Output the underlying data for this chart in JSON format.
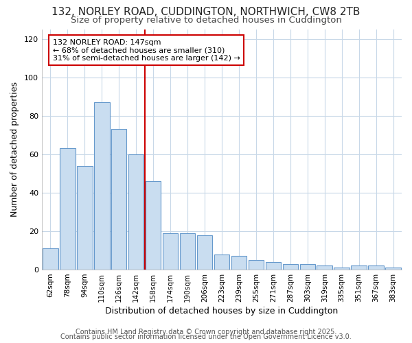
{
  "title1": "132, NORLEY ROAD, CUDDINGTON, NORTHWICH, CW8 2TB",
  "title2": "Size of property relative to detached houses in Cuddington",
  "xlabel": "Distribution of detached houses by size in Cuddington",
  "ylabel": "Number of detached properties",
  "categories": [
    "62sqm",
    "78sqm",
    "94sqm",
    "110sqm",
    "126sqm",
    "142sqm",
    "158sqm",
    "174sqm",
    "190sqm",
    "206sqm",
    "223sqm",
    "239sqm",
    "255sqm",
    "271sqm",
    "287sqm",
    "303sqm",
    "319sqm",
    "335sqm",
    "351sqm",
    "367sqm",
    "383sqm"
  ],
  "values": [
    11,
    63,
    54,
    87,
    73,
    60,
    46,
    19,
    19,
    18,
    8,
    7,
    5,
    4,
    3,
    3,
    2,
    1,
    2,
    2,
    1
  ],
  "bar_color": "#c9ddf0",
  "bar_edge_color": "#6699cc",
  "vline_x": 5.5,
  "vline_color": "#cc0000",
  "annotation_text": "132 NORLEY ROAD: 147sqm\n← 68% of detached houses are smaller (310)\n31% of semi-detached houses are larger (142) →",
  "annotation_box_color": "white",
  "annotation_box_edge": "#cc0000",
  "ylim": [
    0,
    125
  ],
  "yticks": [
    0,
    20,
    40,
    60,
    80,
    100,
    120
  ],
  "footer1": "Contains HM Land Registry data © Crown copyright and database right 2025.",
  "footer2": "Contains public sector information licensed under the Open Government Licence v3.0.",
  "bg_color": "#ffffff",
  "grid_color": "#c8d8e8",
  "title_fontsize": 11,
  "subtitle_fontsize": 9.5,
  "axis_label_fontsize": 9,
  "tick_fontsize": 8,
  "annotation_fontsize": 8,
  "footer_fontsize": 7
}
